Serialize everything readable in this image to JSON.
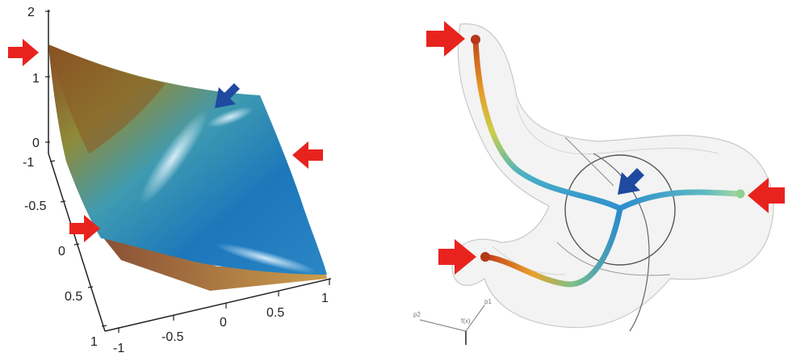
{
  "left_plot": {
    "z_ticks": [
      "2",
      "1",
      "0"
    ],
    "y_ticks": [
      "-1",
      "-0.5",
      "0",
      "0.5",
      "1"
    ],
    "x_ticks": [
      "-1",
      "-0.5",
      "0",
      "0.5",
      "1"
    ],
    "colors": {
      "red_arrow": "#e8231e",
      "blue_arrow": "#1f4aa0",
      "surface_high": "#8a4a22",
      "surface_low": "#1a74b8"
    }
  },
  "right_plot": {
    "axis_labels": {
      "p1": "p1",
      "p2": "p2",
      "fx": "f(x)"
    },
    "colors": {
      "red_arrow": "#e8231e",
      "blue_arrow": "#1f4aa0",
      "tube": "#3a9bd0",
      "end_orange": "#e56a1a"
    }
  }
}
